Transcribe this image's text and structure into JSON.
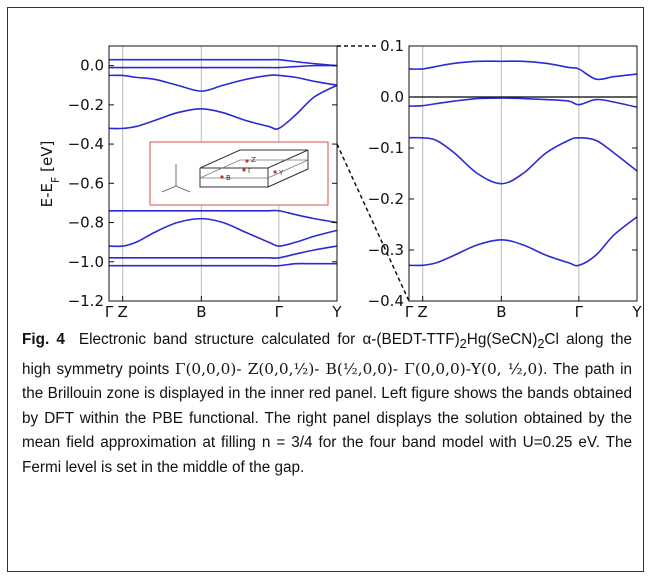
{
  "chart_data": [
    {
      "type": "line",
      "panel": "left",
      "ylabel": "E-E",
      "ylabel_sub": "F",
      "ylabel_unit": " [eV]",
      "ylim": [
        -1.2,
        0.1
      ],
      "yticks": [
        0.0,
        -0.2,
        -0.4,
        -0.6,
        -0.8,
        -1.0,
        -1.2
      ],
      "ytick_labels": [
        "0.0",
        "−0.2",
        "−0.4",
        "−0.6",
        "−0.8",
        "−1.0",
        "−1.2"
      ],
      "kpoints": [
        {
          "label": "Γ",
          "x": 0
        },
        {
          "label": "Z",
          "x": 0.06
        },
        {
          "label": "B",
          "x": 0.405
        },
        {
          "label": "Γ",
          "x": 0.745
        },
        {
          "label": "Y",
          "x": 1.0
        }
      ],
      "x": [
        0,
        0.06,
        0.12,
        0.2,
        0.3,
        0.405,
        0.5,
        0.6,
        0.7,
        0.745,
        0.82,
        0.9,
        1.0
      ],
      "series": [
        {
          "values": [
            0.03,
            0.03,
            0.03,
            0.03,
            0.03,
            0.03,
            0.03,
            0.03,
            0.03,
            0.03,
            0.02,
            0.01,
            0.0
          ]
        },
        {
          "values": [
            -0.01,
            -0.01,
            -0.01,
            -0.01,
            -0.01,
            -0.01,
            -0.01,
            -0.01,
            -0.01,
            -0.01,
            -0.005,
            0.0,
            0.0
          ]
        },
        {
          "values": [
            -0.05,
            -0.05,
            -0.06,
            -0.07,
            -0.1,
            -0.13,
            -0.1,
            -0.07,
            -0.05,
            -0.05,
            -0.06,
            -0.08,
            -0.1
          ]
        },
        {
          "values": [
            -0.32,
            -0.32,
            -0.31,
            -0.28,
            -0.24,
            -0.22,
            -0.24,
            -0.28,
            -0.31,
            -0.32,
            -0.25,
            -0.16,
            -0.1
          ]
        },
        {
          "values": [
            -0.74,
            -0.74,
            -0.74,
            -0.74,
            -0.74,
            -0.74,
            -0.74,
            -0.74,
            -0.74,
            -0.74,
            -0.76,
            -0.78,
            -0.8
          ]
        },
        {
          "values": [
            -0.92,
            -0.92,
            -0.9,
            -0.85,
            -0.8,
            -0.78,
            -0.8,
            -0.85,
            -0.9,
            -0.92,
            -0.9,
            -0.87,
            -0.84
          ]
        },
        {
          "values": [
            -0.98,
            -0.98,
            -0.98,
            -0.98,
            -0.98,
            -0.98,
            -0.98,
            -0.98,
            -0.98,
            -0.98,
            -0.96,
            -0.94,
            -0.92
          ]
        },
        {
          "values": [
            -1.02,
            -1.02,
            -1.02,
            -1.02,
            -1.02,
            -1.02,
            -1.02,
            -1.02,
            -1.02,
            -1.02,
            -1.01,
            -1.01,
            -1.01
          ]
        }
      ],
      "inset_labels": [
        "Z",
        "Γ",
        "B",
        "Y"
      ]
    },
    {
      "type": "line",
      "panel": "right",
      "ylim": [
        -0.4,
        0.1
      ],
      "yticks": [
        0.1,
        0.0,
        -0.1,
        -0.2,
        -0.3,
        -0.4
      ],
      "ytick_labels": [
        "0.1",
        "0.0",
        "−0.1",
        "−0.2",
        "−0.3",
        "−0.4"
      ],
      "fermi_level": 0.0,
      "kpoints": [
        {
          "label": "Γ",
          "x": 0
        },
        {
          "label": "Z",
          "x": 0.06
        },
        {
          "label": "B",
          "x": 0.405
        },
        {
          "label": "Γ",
          "x": 0.745
        },
        {
          "label": "Y",
          "x": 1.0
        }
      ],
      "x": [
        0,
        0.06,
        0.12,
        0.2,
        0.3,
        0.405,
        0.5,
        0.6,
        0.7,
        0.745,
        0.82,
        0.9,
        1.0
      ],
      "series": [
        {
          "values": [
            0.055,
            0.055,
            0.06,
            0.066,
            0.07,
            0.07,
            0.07,
            0.066,
            0.058,
            0.055,
            0.035,
            0.04,
            0.045
          ]
        },
        {
          "values": [
            -0.018,
            -0.017,
            -0.013,
            -0.008,
            -0.003,
            -0.002,
            -0.003,
            -0.005,
            -0.008,
            -0.015,
            -0.005,
            -0.01,
            -0.02
          ]
        },
        {
          "values": [
            -0.08,
            -0.08,
            -0.085,
            -0.11,
            -0.15,
            -0.17,
            -0.15,
            -0.11,
            -0.085,
            -0.08,
            -0.085,
            -0.11,
            -0.145
          ]
        },
        {
          "values": [
            -0.33,
            -0.33,
            -0.325,
            -0.31,
            -0.29,
            -0.28,
            -0.29,
            -0.31,
            -0.325,
            -0.33,
            -0.31,
            -0.27,
            -0.235
          ]
        }
      ]
    }
  ],
  "caption": {
    "label": "Fig.   4",
    "text_parts": [
      {
        "t": "Electronic band structure calculated for α-(BEDT-TTF)"
      },
      {
        "t": "2",
        "sub": true
      },
      {
        "t": "Hg(SeCN)"
      },
      {
        "t": "2",
        "sub": true
      },
      {
        "t": "Cl along the high symmetry points "
      },
      {
        "t": "Γ(0,0,0)- Z(0,0,½)- B(½,0,0)- Γ(0,0,0)-Y(0, ½,0)",
        "serif": true
      },
      {
        "t": ". The path in the Brillouin zone is displayed in the inner red panel.  Left figure shows the bands obtained by DFT within the PBE functional. The right panel displays the solution obtained by the mean field approximation at filling n = 3/4 for the four band model with U=0.25 eV. The Fermi level is set in the middle of the gap."
      }
    ]
  },
  "colors": {
    "band": "#2b2bd6",
    "kline": "#bbbbbb",
    "inset_border": "#d9534f",
    "axis": "#111111"
  }
}
